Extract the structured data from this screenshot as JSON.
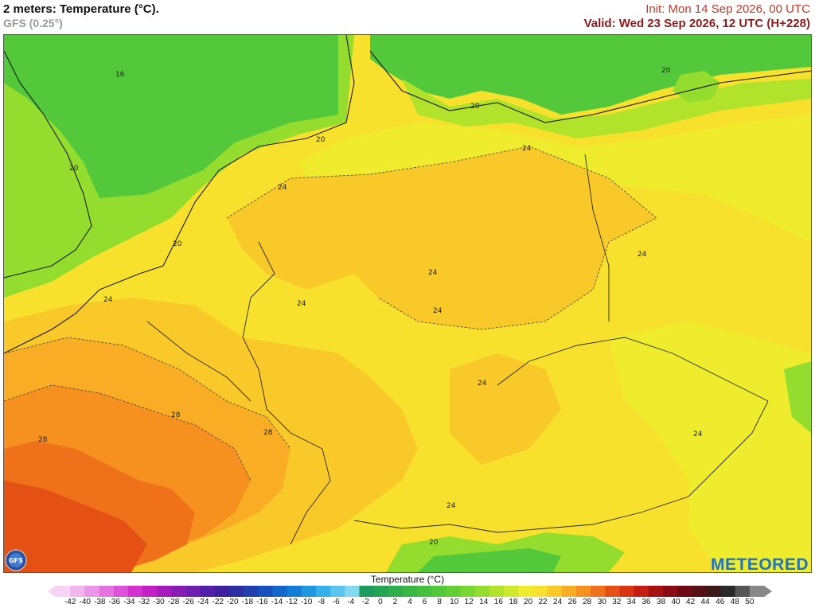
{
  "header": {
    "title": "2 meters: Temperature (°C).",
    "model": "GFS (0.25°)",
    "init": "Init: Mon 14 Sep 2026, 00 UTC",
    "valid": "Valid: Wed 23 Sep 2026, 12 UTC (H+228)"
  },
  "map": {
    "contour_labels": [
      "16",
      "20",
      "20",
      "20",
      "20",
      "20",
      "20",
      "24",
      "24",
      "24",
      "24",
      "24",
      "24",
      "24",
      "24",
      "24",
      "24",
      "28",
      "28",
      "28"
    ]
  },
  "logos": {
    "model_logo_text": "GFS",
    "brand": "METEORED"
  },
  "legend": {
    "title": "Temperature (°C)",
    "ticks": [
      "-42",
      "-40",
      "-38",
      "-36",
      "-34",
      "-32",
      "-30",
      "-28",
      "-26",
      "-24",
      "-22",
      "-20",
      "-18",
      "-16",
      "-14",
      "-12",
      "-10",
      "-8",
      "-6",
      "-4",
      "-2",
      "0",
      "2",
      "4",
      "6",
      "8",
      "10",
      "12",
      "14",
      "16",
      "18",
      "20",
      "22",
      "24",
      "26",
      "28",
      "30",
      "32",
      "34",
      "36",
      "38",
      "40",
      "42",
      "44",
      "46",
      "48",
      "50"
    ],
    "colors": [
      "#f7d4f5",
      "#f2b6ef",
      "#ec96e8",
      "#e574e0",
      "#dd52d8",
      "#d431d1",
      "#c21fc4",
      "#a51cbc",
      "#8a1cb6",
      "#6e1fb0",
      "#541fa8",
      "#3d1f9f",
      "#2d2ea3",
      "#213faf",
      "#1851bd",
      "#1266cb",
      "#127dd6",
      "#1c97e0",
      "#35b0e8",
      "#59c5ee",
      "#86d8f2",
      "#1c9c5a",
      "#24a553",
      "#2ead4c",
      "#39b646",
      "#45bf40",
      "#52c83a",
      "#63cf35",
      "#7ad731",
      "#94dd2e",
      "#b1e22c",
      "#d0e82c",
      "#eeec2c",
      "#f8e12c",
      "#f9c829",
      "#f8ad24",
      "#f6911f",
      "#ef7119",
      "#e55114",
      "#d93413",
      "#c51d12",
      "#a81113",
      "#8a0b14",
      "#6e0813",
      "#541014",
      "#3d1818",
      "#2a2a2a",
      "#555555",
      "#888888"
    ],
    "accent": "#1f73c4"
  }
}
